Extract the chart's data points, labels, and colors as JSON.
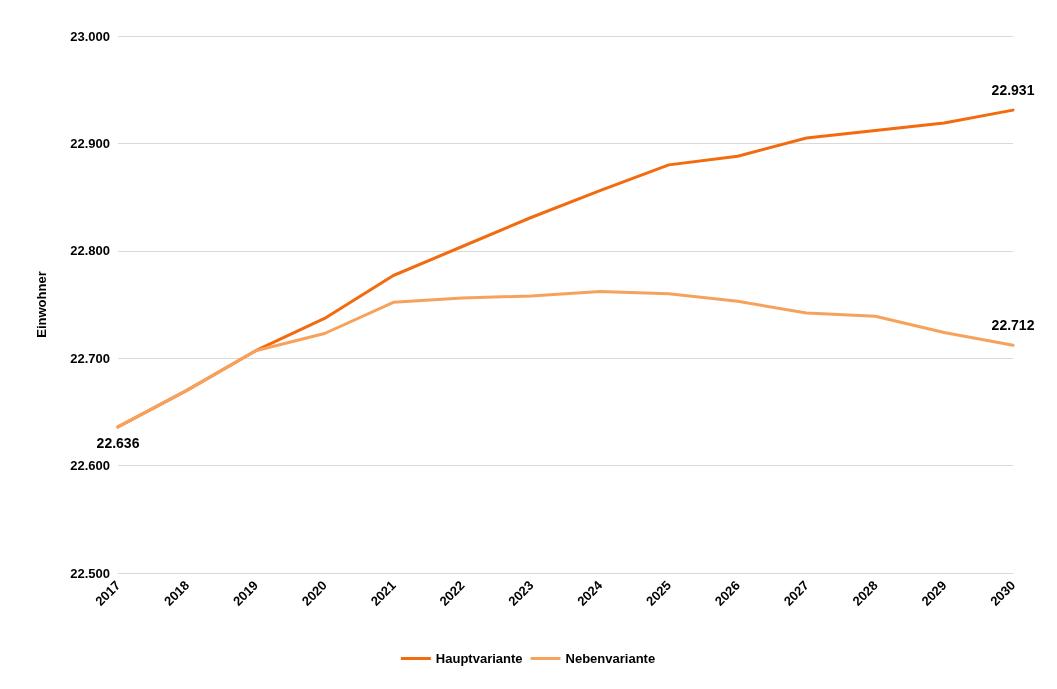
{
  "chart_data": {
    "type": "line",
    "ylabel": "Einwohner",
    "categories": [
      "2017",
      "2018",
      "2019",
      "2020",
      "2021",
      "2022",
      "2023",
      "2024",
      "2025",
      "2026",
      "2027",
      "2028",
      "2029",
      "2030"
    ],
    "series": [
      {
        "name": "Hauptvariante",
        "color": "#f26b0f",
        "values": [
          22.636,
          22.67,
          22.707,
          22.737,
          22.777,
          22.804,
          22.831,
          22.856,
          22.88,
          22.888,
          22.905,
          22.912,
          22.919,
          22.931
        ],
        "value_labels": [
          null,
          null,
          null,
          null,
          null,
          null,
          null,
          null,
          null,
          null,
          null,
          null,
          null,
          "22.931"
        ]
      },
      {
        "name": "Nebenvariante",
        "color": "#f7a25c",
        "values": [
          22.636,
          22.67,
          22.707,
          22.723,
          22.752,
          22.756,
          22.758,
          22.762,
          22.76,
          22.753,
          22.742,
          22.739,
          22.724,
          22.712
        ],
        "value_labels": [
          "22.636",
          null,
          null,
          null,
          null,
          null,
          null,
          null,
          null,
          null,
          null,
          null,
          null,
          "22.712"
        ]
      }
    ],
    "ylim": [
      22.5,
      23.0
    ],
    "yticks": [
      {
        "value": 22.5,
        "label": "22.500"
      },
      {
        "value": 22.6,
        "label": "22.600"
      },
      {
        "value": 22.7,
        "label": "22.700"
      },
      {
        "value": 22.8,
        "label": "22.800"
      },
      {
        "value": 22.9,
        "label": "22.900"
      },
      {
        "value": 23.0,
        "label": "23.000"
      }
    ],
    "grid": "y",
    "legend": "bottom",
    "marker": "none",
    "line_style": "solid"
  }
}
